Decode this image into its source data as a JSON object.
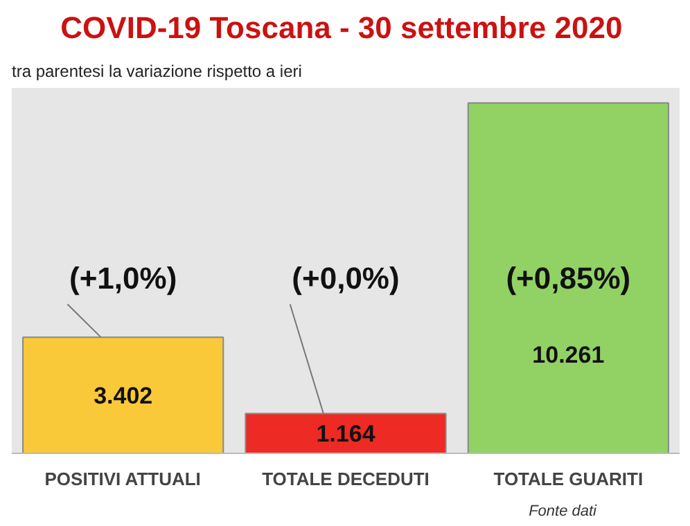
{
  "chart_data": {
    "type": "bar",
    "title": "COVID-19  Toscana - 30 settembre 2020",
    "subtitle": "tra parentesi la variazione rispetto a ieri",
    "categories": [
      "POSITIVI ATTUALI",
      "TOTALE DECEDUTI",
      "TOTALE GUARITI"
    ],
    "values": [
      3402,
      1164,
      10261
    ],
    "value_labels": [
      "3.402",
      "1.164",
      "10.261"
    ],
    "colors": [
      "#f9c93a",
      "#ee2a24",
      "#92d265"
    ],
    "ylim": [
      0,
      10700
    ],
    "annotations": [
      "(+1,0%)",
      "(+0,0%)",
      "(+0,85%)",
      "Fonte dati"
    ],
    "tick_labels": "x",
    "grid": false
  }
}
